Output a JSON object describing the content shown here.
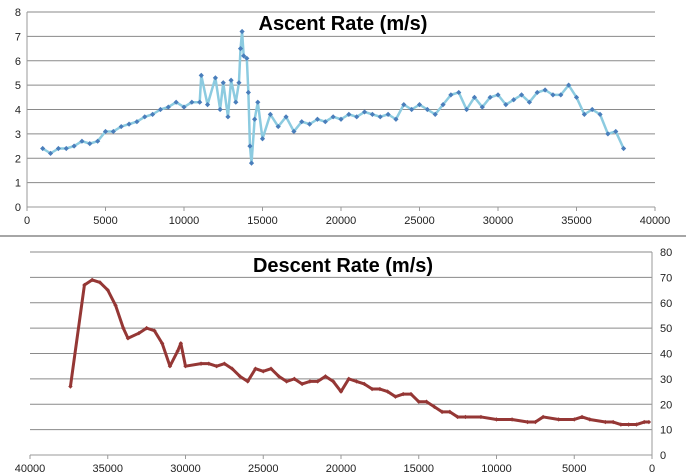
{
  "chart_data": [
    {
      "type": "line",
      "title": "Ascent Rate (m/s)",
      "xlabel": "",
      "ylabel": "",
      "xlim": [
        0,
        40000
      ],
      "ylim": [
        0,
        8
      ],
      "xticks": [
        "0",
        "5000",
        "10000",
        "15000",
        "20000",
        "25000",
        "30000",
        "35000",
        "40000"
      ],
      "yticks": [
        "0",
        "1",
        "2",
        "3",
        "4",
        "5",
        "6",
        "7",
        "8"
      ],
      "grid": true,
      "line_color": "#8ccbe0",
      "marker_color": "#4a7ebb",
      "x": [
        1000,
        1500,
        2000,
        2500,
        3000,
        3500,
        4000,
        4500,
        5000,
        5500,
        6000,
        6500,
        7000,
        7500,
        8000,
        8500,
        9000,
        9500,
        10000,
        10500,
        11000,
        11100,
        11500,
        12000,
        12300,
        12500,
        12800,
        13000,
        13300,
        13500,
        13600,
        13700,
        13800,
        14000,
        14100,
        14200,
        14300,
        14500,
        14700,
        15000,
        15500,
        16000,
        16500,
        17000,
        17500,
        18000,
        18500,
        19000,
        19500,
        20000,
        20500,
        21000,
        21500,
        22000,
        22500,
        23000,
        23500,
        24000,
        24500,
        25000,
        25500,
        26000,
        26500,
        27000,
        27500,
        28000,
        28500,
        29000,
        29500,
        30000,
        30500,
        31000,
        31500,
        32000,
        32500,
        33000,
        33500,
        34000,
        34500,
        35000,
        35500,
        36000,
        36500,
        37000,
        37500,
        38000
      ],
      "values": [
        2.4,
        2.2,
        2.4,
        2.4,
        2.5,
        2.7,
        2.6,
        2.7,
        3.1,
        3.1,
        3.3,
        3.4,
        3.5,
        3.7,
        3.8,
        4.0,
        4.1,
        4.3,
        4.1,
        4.3,
        4.3,
        5.4,
        4.2,
        5.3,
        4.0,
        5.1,
        3.7,
        5.2,
        4.3,
        5.1,
        6.5,
        7.2,
        6.2,
        6.1,
        4.7,
        2.5,
        1.8,
        3.6,
        4.3,
        2.8,
        3.8,
        3.3,
        3.7,
        3.1,
        3.5,
        3.4,
        3.6,
        3.5,
        3.7,
        3.6,
        3.8,
        3.7,
        3.9,
        3.8,
        3.7,
        3.8,
        3.6,
        4.2,
        4.0,
        4.2,
        4.0,
        3.8,
        4.2,
        4.6,
        4.7,
        4.0,
        4.5,
        4.1,
        4.5,
        4.6,
        4.2,
        4.4,
        4.6,
        4.3,
        4.7,
        4.8,
        4.6,
        4.6,
        5.0,
        4.5,
        3.8,
        4.0,
        3.8,
        3.0,
        3.1,
        2.4
      ]
    },
    {
      "type": "line",
      "title": "Descent Rate (m/s)",
      "xlabel": "",
      "ylabel": "",
      "xlim": [
        40000,
        0
      ],
      "ylim": [
        0,
        80
      ],
      "xticks": [
        "40000",
        "35000",
        "30000",
        "25000",
        "20000",
        "15000",
        "10000",
        "5000",
        "0"
      ],
      "yticks": [
        "0",
        "10",
        "20",
        "30",
        "40",
        "50",
        "60",
        "70",
        "80"
      ],
      "grid": true,
      "line_color": "#953735",
      "x": [
        37400,
        36500,
        36000,
        35500,
        35000,
        34500,
        34000,
        33700,
        33000,
        32500,
        32000,
        31500,
        31000,
        30500,
        30300,
        30000,
        29000,
        28500,
        28000,
        27500,
        27000,
        26500,
        26000,
        25500,
        25000,
        24500,
        24000,
        23500,
        23000,
        22500,
        22000,
        21500,
        21000,
        20500,
        20000,
        19500,
        19000,
        18500,
        18000,
        17500,
        17000,
        16500,
        16000,
        15500,
        15000,
        14500,
        14000,
        13500,
        13000,
        12500,
        12000,
        11000,
        10000,
        9000,
        8000,
        7500,
        7000,
        6000,
        5000,
        4500,
        4000,
        3000,
        2500,
        2000,
        1500,
        1000,
        500,
        200
      ],
      "values": [
        27,
        67,
        69,
        68,
        65,
        59,
        50,
        46,
        48,
        50,
        49,
        44,
        35,
        41,
        44,
        35,
        36,
        36,
        35,
        36,
        34,
        31,
        29,
        34,
        33,
        34,
        31,
        29,
        30,
        28,
        29,
        29,
        31,
        29,
        25,
        30,
        29,
        28,
        26,
        26,
        25,
        23,
        24,
        24,
        21,
        21,
        19,
        17,
        17,
        15,
        15,
        15,
        14,
        14,
        13,
        13,
        15,
        14,
        14,
        15,
        14,
        13,
        13,
        12,
        12,
        12,
        13,
        13
      ]
    }
  ]
}
